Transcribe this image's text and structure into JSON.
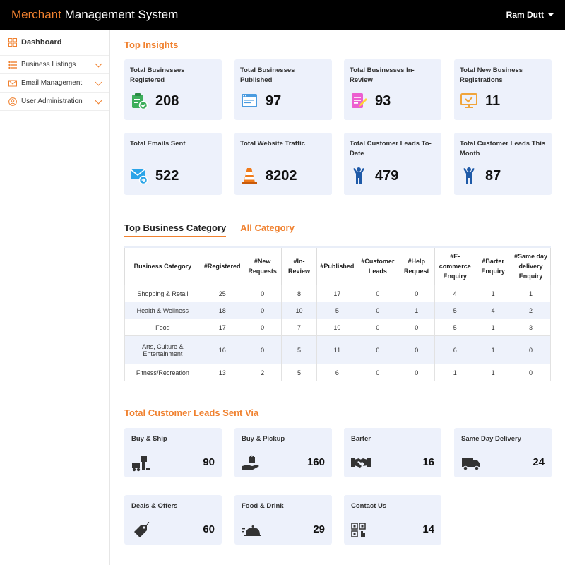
{
  "header": {
    "brand_accent": "Merchant",
    "brand_rest": "Management System",
    "user_name": "Ram Dutt"
  },
  "sidebar": {
    "items": [
      {
        "label": "Dashboard",
        "icon": "dashboard-icon"
      },
      {
        "label": "Business Listings",
        "icon": "list-icon"
      },
      {
        "label": "Email Management",
        "icon": "mail-icon"
      },
      {
        "label": "User Administration",
        "icon": "user-icon"
      }
    ]
  },
  "insights": {
    "title": "Top Insights",
    "cards": [
      {
        "label": "Total Businesses Registered",
        "value": "208",
        "icon": "clipboard-check-icon"
      },
      {
        "label": "Total Businesses Published",
        "value": "97",
        "icon": "browser-window-icon"
      },
      {
        "label": "Total Businesses In-Review",
        "value": "93",
        "icon": "edit-document-icon"
      },
      {
        "label": "Total New Business Registrations",
        "value": "11",
        "icon": "monitor-check-icon"
      },
      {
        "label": "Total Emails Sent",
        "value": "522",
        "icon": "email-send-icon"
      },
      {
        "label": "Total Website Traffic",
        "value": "8202",
        "icon": "traffic-cone-icon"
      },
      {
        "label": "Total Customer Leads To-Date",
        "value": "479",
        "icon": "person-icon"
      },
      {
        "label": "Total Customer Leads This Month",
        "value": "87",
        "icon": "person-icon"
      }
    ]
  },
  "category": {
    "tab_active": "Top Business Category",
    "tab_other": "All Category",
    "headers": [
      "Business Category",
      "#Registered",
      "#New Requests",
      "#In-Review",
      "#Published",
      "#Customer Leads",
      "#Help Request",
      "#E-commerce Enquiry",
      "#Barter Enquiry",
      "#Same day delivery Enquiry"
    ],
    "rows": [
      [
        "Shopping & Retail",
        "25",
        "0",
        "8",
        "17",
        "0",
        "0",
        "4",
        "1",
        "1"
      ],
      [
        "Health & Wellness",
        "18",
        "0",
        "10",
        "5",
        "0",
        "1",
        "5",
        "4",
        "2"
      ],
      [
        "Food",
        "17",
        "0",
        "7",
        "10",
        "0",
        "0",
        "5",
        "1",
        "3"
      ],
      [
        "Arts, Culture & Entertainment",
        "16",
        "0",
        "5",
        "11",
        "0",
        "0",
        "6",
        "1",
        "0"
      ],
      [
        "Fitness/Recreation",
        "13",
        "2",
        "5",
        "6",
        "0",
        "0",
        "1",
        "1",
        "0"
      ]
    ]
  },
  "leads": {
    "title": "Total Customer Leads Sent Via",
    "cards": [
      {
        "label": "Buy & Ship",
        "value": "90",
        "icon": "delivery-truck-icon"
      },
      {
        "label": "Buy & Pickup",
        "value": "160",
        "icon": "pickup-hand-icon"
      },
      {
        "label": "Barter",
        "value": "16",
        "icon": "handshake-icon"
      },
      {
        "label": "Same Day Delivery",
        "value": "24",
        "icon": "truck-icon"
      },
      {
        "label": "Deals & Offers",
        "value": "60",
        "icon": "price-tag-icon"
      },
      {
        "label": "Food & Drink",
        "value": "29",
        "icon": "food-cloche-icon"
      },
      {
        "label": "Contact Us",
        "value": "14",
        "icon": "qr-code-icon"
      }
    ]
  }
}
